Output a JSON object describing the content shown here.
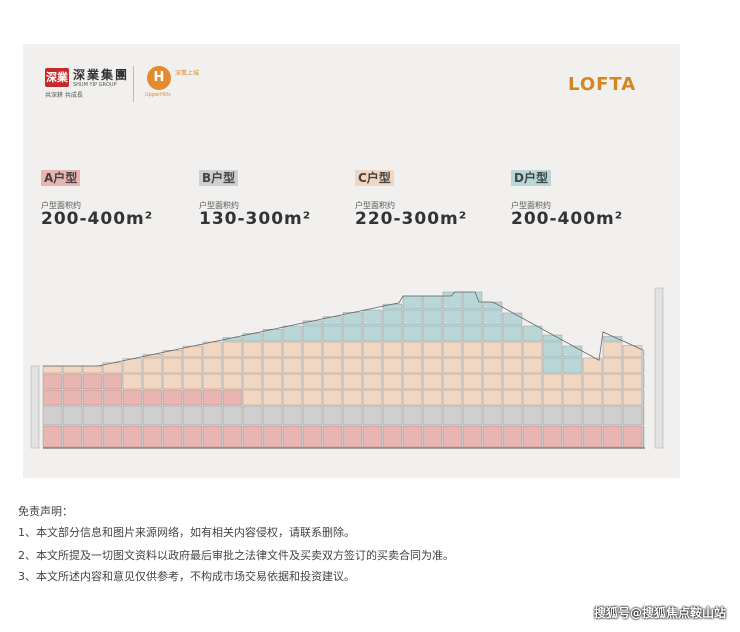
{
  "brand": {
    "badge": "深業",
    "name_cn": "深業集團",
    "name_en": "SHUM YIP GROUP",
    "slogan": "共深耕 共成長",
    "upper_icon": "H",
    "upper_text": "深業上城",
    "upper_en": "UpperHills",
    "project_logo": "LOFTA"
  },
  "units": [
    {
      "tag": "A户型",
      "tag_color": "#e9b5b0",
      "area_label": "户型面积约",
      "area_value": "200-400m²"
    },
    {
      "tag": "B户型",
      "tag_color": "#cfcfcf",
      "area_label": "户型面积约",
      "area_value": "130-300m²"
    },
    {
      "tag": "C户型",
      "tag_color": "#f1d6c2",
      "area_label": "户型面积约",
      "area_value": "220-300m²"
    },
    {
      "tag": "D户型",
      "tag_color": "#b9d7d8",
      "area_label": "户型面积约",
      "area_value": "200-400m²"
    }
  ],
  "section_diagram": {
    "colors": {
      "A": "#e9b5b0",
      "B": "#cfcfcf",
      "C": "#f1d6c2",
      "D": "#b9d7d8"
    }
  },
  "disclaimer": {
    "title": "免责声明：",
    "lines": [
      "1、本文部分信息和图片来源网络，如有相关内容侵权，请联系删除。",
      "2、本文所提及一切图文资料以政府最后审批之法律文件及买卖双方签订的买卖合同为准。",
      "3、本文所述内容和意见仅供参考，不构成市场交易依据和投资建议。"
    ]
  },
  "watermark": "搜狐号@搜狐焦点鞍山站"
}
